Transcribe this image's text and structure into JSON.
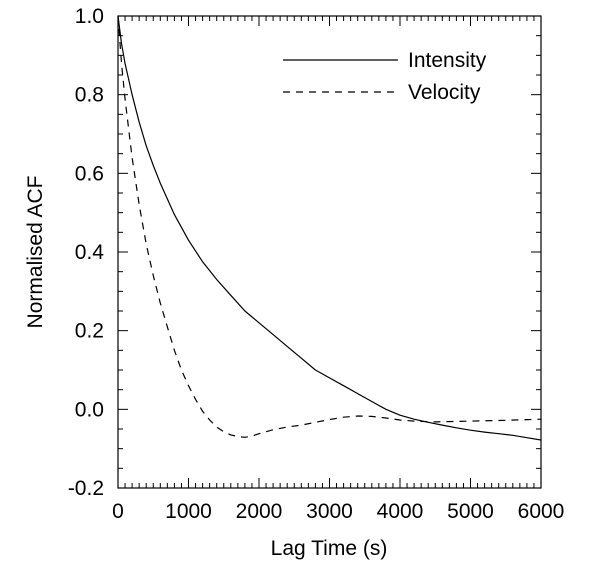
{
  "chart_data": {
    "type": "line",
    "title": "",
    "xlabel": "Lag Time (s)",
    "ylabel": "Normalised ACF",
    "xlim": [
      0,
      6000
    ],
    "ylim": [
      -0.2,
      1.0
    ],
    "x_ticks": [
      0,
      1000,
      2000,
      3000,
      4000,
      5000,
      6000
    ],
    "x_tick_labels": [
      "0",
      "1000",
      "2000",
      "3000",
      "4000",
      "5000",
      "6000"
    ],
    "y_ticks": [
      -0.2,
      0.0,
      0.2,
      0.4,
      0.6,
      0.8,
      1.0
    ],
    "y_tick_labels": [
      "-0.2",
      "0.0",
      "0.2",
      "0.4",
      "0.6",
      "0.8",
      "1.0"
    ],
    "grid": false,
    "legend_position": "top-right",
    "series": [
      {
        "name": "Intensity",
        "line_style": "solid",
        "x": [
          0,
          50,
          100,
          200,
          300,
          400,
          500,
          600,
          800,
          1000,
          1200,
          1400,
          1600,
          1800,
          2000,
          2200,
          2400,
          2600,
          2800,
          3000,
          3200,
          3400,
          3600,
          3800,
          4000,
          4200,
          4400,
          4600,
          4800,
          5000,
          5200,
          5400,
          5600,
          5800,
          6000
        ],
        "values": [
          1.0,
          0.93,
          0.88,
          0.8,
          0.73,
          0.67,
          0.62,
          0.575,
          0.495,
          0.43,
          0.375,
          0.33,
          0.29,
          0.25,
          0.22,
          0.19,
          0.16,
          0.13,
          0.1,
          0.08,
          0.06,
          0.04,
          0.02,
          0.0,
          -0.015,
          -0.025,
          -0.033,
          -0.04,
          -0.047,
          -0.053,
          -0.058,
          -0.062,
          -0.066,
          -0.072,
          -0.078
        ]
      },
      {
        "name": "Velocity",
        "line_style": "dashed",
        "x": [
          0,
          50,
          100,
          200,
          300,
          400,
          500,
          600,
          700,
          800,
          900,
          1000,
          1100,
          1200,
          1300,
          1400,
          1500,
          1600,
          1700,
          1800,
          1900,
          2000,
          2200,
          2400,
          2600,
          2800,
          3000,
          3200,
          3400,
          3600,
          3800,
          4000,
          4200,
          4500,
          5000,
          5500,
          6000
        ],
        "values": [
          1.0,
          0.88,
          0.79,
          0.64,
          0.52,
          0.42,
          0.34,
          0.27,
          0.21,
          0.15,
          0.1,
          0.06,
          0.025,
          -0.005,
          -0.027,
          -0.045,
          -0.057,
          -0.065,
          -0.069,
          -0.071,
          -0.068,
          -0.062,
          -0.052,
          -0.045,
          -0.04,
          -0.033,
          -0.026,
          -0.02,
          -0.017,
          -0.018,
          -0.022,
          -0.027,
          -0.03,
          -0.032,
          -0.03,
          -0.028,
          -0.025
        ]
      }
    ]
  }
}
